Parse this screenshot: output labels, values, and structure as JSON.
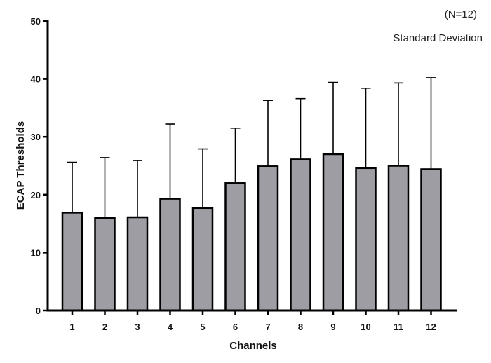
{
  "chart_data": {
    "type": "bar",
    "title": "",
    "xlabel": "Channels",
    "ylabel": "ECAP Thresholds",
    "ylim": [
      0,
      50
    ],
    "yticks": [
      0,
      10,
      20,
      30,
      40,
      50
    ],
    "grid": false,
    "categories": [
      "1",
      "2",
      "3",
      "4",
      "5",
      "6",
      "7",
      "8",
      "9",
      "10",
      "11",
      "12"
    ],
    "values": [
      16.9,
      16.0,
      16.1,
      19.3,
      17.7,
      22.0,
      24.9,
      26.1,
      27.0,
      24.6,
      25.0,
      24.4
    ],
    "error_upper": [
      25.6,
      26.4,
      25.9,
      32.2,
      27.9,
      31.5,
      36.3,
      36.6,
      39.4,
      38.4,
      39.3,
      40.2
    ],
    "bar_color": "#9e9da3",
    "annotations": [
      "(N=12)",
      "Standard Deviation"
    ]
  }
}
